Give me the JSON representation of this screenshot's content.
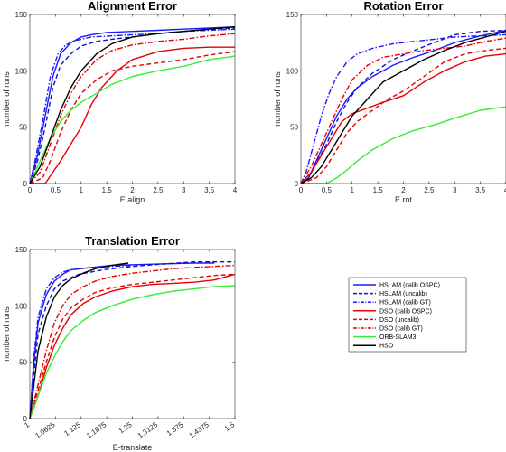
{
  "legend": {
    "entries": [
      {
        "label": "HSLAM (calib OSPC)",
        "color": "#1a1aff",
        "dash": "solid"
      },
      {
        "label": "HSLAM (uncalib)",
        "color": "#1010cc",
        "dash": "dashed"
      },
      {
        "label": "HSLAM (calib GT)",
        "color": "#1a1aff",
        "dash": "dashdot"
      },
      {
        "label": "DSO (calib OSPC)",
        "color": "#e60000",
        "dash": "solid"
      },
      {
        "label": "DSO (uncalib)",
        "color": "#e60000",
        "dash": "dashed"
      },
      {
        "label": "DSO (calib GT)",
        "color": "#e60000",
        "dash": "dashdot"
      },
      {
        "label": "ORB-SLAM3",
        "color": "#33ee33",
        "dash": "solid"
      },
      {
        "label": "HSO",
        "color": "#000000",
        "dash": "solid"
      }
    ]
  },
  "chart_data": [
    {
      "type": "line",
      "title": "Alignment Error",
      "xlabel": "E align",
      "ylabel": "number of runs",
      "xlim": [
        0,
        4
      ],
      "ylim": [
        0,
        150
      ],
      "xticks": [
        "0",
        "0.5",
        "1",
        "1.5",
        "2",
        "2.5",
        "3",
        "3.5",
        "4"
      ],
      "yticks": [
        "0",
        "50",
        "100",
        "150"
      ],
      "series": [
        {
          "name": "HSLAM (calib OSPC)",
          "x": [
            0,
            0.15,
            0.3,
            0.45,
            0.6,
            0.8,
            1.0,
            1.2,
            1.5,
            2.0,
            2.5,
            3.0,
            3.5,
            4.0
          ],
          "y": [
            0,
            25,
            60,
            95,
            115,
            125,
            130,
            132,
            134,
            135,
            136,
            137,
            138,
            139
          ]
        },
        {
          "name": "HSLAM (uncalib)",
          "x": [
            0,
            0.15,
            0.3,
            0.45,
            0.6,
            0.8,
            1.0,
            1.3,
            1.6,
            2.0,
            2.5,
            3.0,
            3.5,
            4.0
          ],
          "y": [
            0,
            20,
            50,
            85,
            105,
            115,
            122,
            126,
            128,
            130,
            133,
            135,
            137,
            138
          ]
        },
        {
          "name": "HSLAM (calib GT)",
          "x": [
            0,
            0.1,
            0.25,
            0.4,
            0.55,
            0.7,
            0.9,
            1.2,
            1.6,
            2.0,
            2.5,
            3.0,
            3.5,
            4.0
          ],
          "y": [
            0,
            20,
            55,
            95,
            115,
            123,
            127,
            130,
            131,
            132,
            133,
            135,
            136,
            137
          ]
        },
        {
          "name": "DSO (calib OSPC)",
          "x": [
            0,
            0.3,
            0.45,
            0.6,
            0.8,
            1.0,
            1.2,
            1.4,
            1.7,
            2.0,
            2.5,
            3.0,
            3.5,
            4.0
          ],
          "y": [
            0,
            0,
            10,
            20,
            35,
            50,
            70,
            85,
            100,
            110,
            117,
            120,
            121,
            121
          ]
        },
        {
          "name": "DSO (uncalib)",
          "x": [
            0,
            0.25,
            0.4,
            0.6,
            0.8,
            1.0,
            1.3,
            1.6,
            2.0,
            2.5,
            3.0,
            3.5,
            4.0
          ],
          "y": [
            0,
            5,
            20,
            45,
            65,
            80,
            92,
            100,
            104,
            107,
            110,
            114,
            117
          ]
        },
        {
          "name": "DSO (calib GT)",
          "x": [
            0,
            0.2,
            0.4,
            0.6,
            0.8,
            1.0,
            1.3,
            1.6,
            2.0,
            2.5,
            3.0,
            3.5,
            4.0
          ],
          "y": [
            0,
            10,
            35,
            60,
            80,
            95,
            110,
            118,
            123,
            126,
            128,
            131,
            133
          ]
        },
        {
          "name": "ORB-SLAM3",
          "x": [
            0,
            0.2,
            0.4,
            0.6,
            0.8,
            1.0,
            1.3,
            1.6,
            2.0,
            2.5,
            3.0,
            3.5,
            4.0
          ],
          "y": [
            0,
            20,
            40,
            55,
            65,
            72,
            80,
            88,
            95,
            100,
            104,
            110,
            113
          ]
        },
        {
          "name": "HSO",
          "x": [
            0,
            0.2,
            0.4,
            0.6,
            0.8,
            1.0,
            1.3,
            1.6,
            2.0,
            2.5,
            3.0,
            3.5,
            4.0
          ],
          "y": [
            0,
            15,
            40,
            65,
            85,
            100,
            115,
            124,
            130,
            133,
            135,
            137,
            139
          ]
        }
      ]
    },
    {
      "type": "line",
      "title": "Rotation Error",
      "xlabel": "E rot",
      "ylabel": "number of runs",
      "xlim": [
        0,
        4
      ],
      "ylim": [
        0,
        150
      ],
      "xticks": [
        "0",
        "0.5",
        "1",
        "1.5",
        "2",
        "2.5",
        "3",
        "3.5",
        "4"
      ],
      "yticks": [
        "0",
        "50",
        "100",
        "150"
      ],
      "series": [
        {
          "name": "HSLAM (calib OSPC)",
          "x": [
            0,
            0.15,
            0.3,
            0.5,
            0.7,
            0.9,
            1.1,
            1.4,
            1.8,
            2.2,
            2.6,
            3.0,
            3.5,
            4.0
          ],
          "y": [
            0,
            5,
            20,
            40,
            60,
            75,
            85,
            95,
            105,
            112,
            118,
            125,
            131,
            136
          ]
        },
        {
          "name": "HSLAM (uncalib)",
          "x": [
            0,
            0.15,
            0.3,
            0.5,
            0.7,
            0.9,
            1.1,
            1.4,
            1.8,
            2.2,
            2.6,
            3.0,
            3.5,
            4.0
          ],
          "y": [
            0,
            5,
            18,
            35,
            55,
            72,
            85,
            98,
            110,
            118,
            125,
            132,
            135,
            136
          ]
        },
        {
          "name": "HSLAM (calib GT)",
          "x": [
            0,
            0.1,
            0.25,
            0.4,
            0.55,
            0.7,
            0.9,
            1.1,
            1.4,
            1.8,
            2.2,
            2.6,
            3.0,
            3.5,
            4.0
          ],
          "y": [
            0,
            10,
            35,
            60,
            80,
            95,
            108,
            115,
            120,
            124,
            126,
            128,
            130,
            131,
            132
          ]
        },
        {
          "name": "DSO (calib OSPC)",
          "x": [
            0,
            0.2,
            0.4,
            0.6,
            0.8,
            1.0,
            1.3,
            1.6,
            2.0,
            2.4,
            2.8,
            3.2,
            3.6,
            4.0
          ],
          "y": [
            0,
            10,
            25,
            40,
            55,
            62,
            67,
            72,
            78,
            90,
            100,
            108,
            113,
            115
          ]
        },
        {
          "name": "DSO (uncalib)",
          "x": [
            0,
            0.3,
            0.5,
            0.7,
            0.9,
            1.1,
            1.4,
            1.7,
            2.0,
            2.4,
            2.8,
            3.2,
            3.6,
            4.0
          ],
          "y": [
            0,
            5,
            15,
            30,
            45,
            55,
            65,
            75,
            82,
            95,
            108,
            115,
            118,
            120
          ]
        },
        {
          "name": "DSO (calib GT)",
          "x": [
            0,
            0.2,
            0.4,
            0.6,
            0.8,
            1.0,
            1.3,
            1.6,
            2.0,
            2.4,
            2.8,
            3.2,
            3.6,
            4.0
          ],
          "y": [
            0,
            15,
            35,
            55,
            75,
            92,
            105,
            112,
            115,
            118,
            120,
            122,
            126,
            129
          ]
        },
        {
          "name": "ORB-SLAM3",
          "x": [
            0,
            0.5,
            0.7,
            0.9,
            1.1,
            1.4,
            1.8,
            2.2,
            2.6,
            3.0,
            3.5,
            4.0
          ],
          "y": [
            0,
            0,
            5,
            12,
            20,
            30,
            40,
            47,
            52,
            58,
            65,
            68
          ]
        },
        {
          "name": "HSO",
          "x": [
            0,
            0.2,
            0.4,
            0.6,
            0.8,
            1.0,
            1.3,
            1.6,
            2.0,
            2.4,
            2.8,
            3.2,
            3.6,
            4.0
          ],
          "y": [
            0,
            5,
            15,
            30,
            45,
            60,
            75,
            90,
            100,
            110,
            118,
            125,
            130,
            135
          ]
        }
      ]
    },
    {
      "type": "line",
      "title": "Translation Error",
      "xlabel": "E-translate",
      "ylabel": "number of runs",
      "xlim": [
        1,
        1.5
      ],
      "ylim": [
        0,
        150
      ],
      "xticks": [
        "1",
        "1.0625",
        "1.125",
        "1.1875",
        "1.25",
        "1.3125",
        "1.375",
        "1.4375",
        "1.5"
      ],
      "yticks": [
        "0",
        "50",
        "100",
        "150"
      ],
      "series": [
        {
          "name": "HSLAM (calib OSPC)",
          "x": [
            1.0,
            1.01,
            1.02,
            1.04,
            1.06,
            1.08,
            1.1,
            1.15,
            1.2,
            1.3,
            1.4,
            1.45
          ],
          "y": [
            0,
            50,
            85,
            110,
            122,
            128,
            132,
            134,
            136,
            137,
            138,
            138
          ]
        },
        {
          "name": "HSLAM (uncalib)",
          "x": [
            1.0,
            1.01,
            1.02,
            1.04,
            1.06,
            1.08,
            1.12,
            1.18,
            1.25,
            1.32,
            1.4,
            1.5
          ],
          "y": [
            0,
            40,
            75,
            100,
            115,
            122,
            128,
            132,
            135,
            137,
            139,
            139
          ]
        },
        {
          "name": "HSLAM (calib GT)",
          "x": [
            1.0,
            1.01,
            1.02,
            1.04,
            1.06,
            1.08,
            1.1,
            1.15,
            1.2,
            1.25
          ],
          "y": [
            0,
            55,
            90,
            115,
            125,
            130,
            132,
            134,
            135,
            136
          ]
        },
        {
          "name": "DSO (calib OSPC)",
          "x": [
            1.0,
            1.02,
            1.04,
            1.06,
            1.08,
            1.1,
            1.13,
            1.16,
            1.2,
            1.25,
            1.3,
            1.35,
            1.4,
            1.45,
            1.5
          ],
          "y": [
            0,
            20,
            45,
            65,
            80,
            92,
            102,
            108,
            113,
            117,
            119,
            120,
            121,
            123,
            128
          ]
        },
        {
          "name": "DSO (uncalib)",
          "x": [
            1.0,
            1.02,
            1.04,
            1.06,
            1.08,
            1.1,
            1.13,
            1.16,
            1.2,
            1.25,
            1.3,
            1.35,
            1.4,
            1.45,
            1.5
          ],
          "y": [
            0,
            25,
            50,
            72,
            88,
            98,
            106,
            112,
            116,
            119,
            121,
            123,
            125,
            127,
            128
          ]
        },
        {
          "name": "DSO (calib GT)",
          "x": [
            1.0,
            1.02,
            1.04,
            1.06,
            1.08,
            1.1,
            1.13,
            1.16,
            1.2,
            1.25,
            1.3,
            1.35,
            1.4,
            1.45,
            1.5
          ],
          "y": [
            0,
            30,
            60,
            85,
            100,
            110,
            117,
            122,
            126,
            129,
            131,
            133,
            134,
            135,
            136
          ]
        },
        {
          "name": "ORB-SLAM3",
          "x": [
            1.0,
            1.02,
            1.04,
            1.06,
            1.08,
            1.1,
            1.13,
            1.16,
            1.2,
            1.25,
            1.3,
            1.35,
            1.4,
            1.45,
            1.5
          ],
          "y": [
            0,
            20,
            40,
            55,
            68,
            78,
            87,
            94,
            100,
            106,
            110,
            113,
            115,
            117,
            118
          ]
        },
        {
          "name": "HSO",
          "x": [
            1.0,
            1.01,
            1.02,
            1.04,
            1.06,
            1.08,
            1.1,
            1.13,
            1.16,
            1.2,
            1.24
          ],
          "y": [
            0,
            30,
            60,
            90,
            108,
            118,
            124,
            129,
            133,
            136,
            138
          ]
        }
      ]
    }
  ]
}
